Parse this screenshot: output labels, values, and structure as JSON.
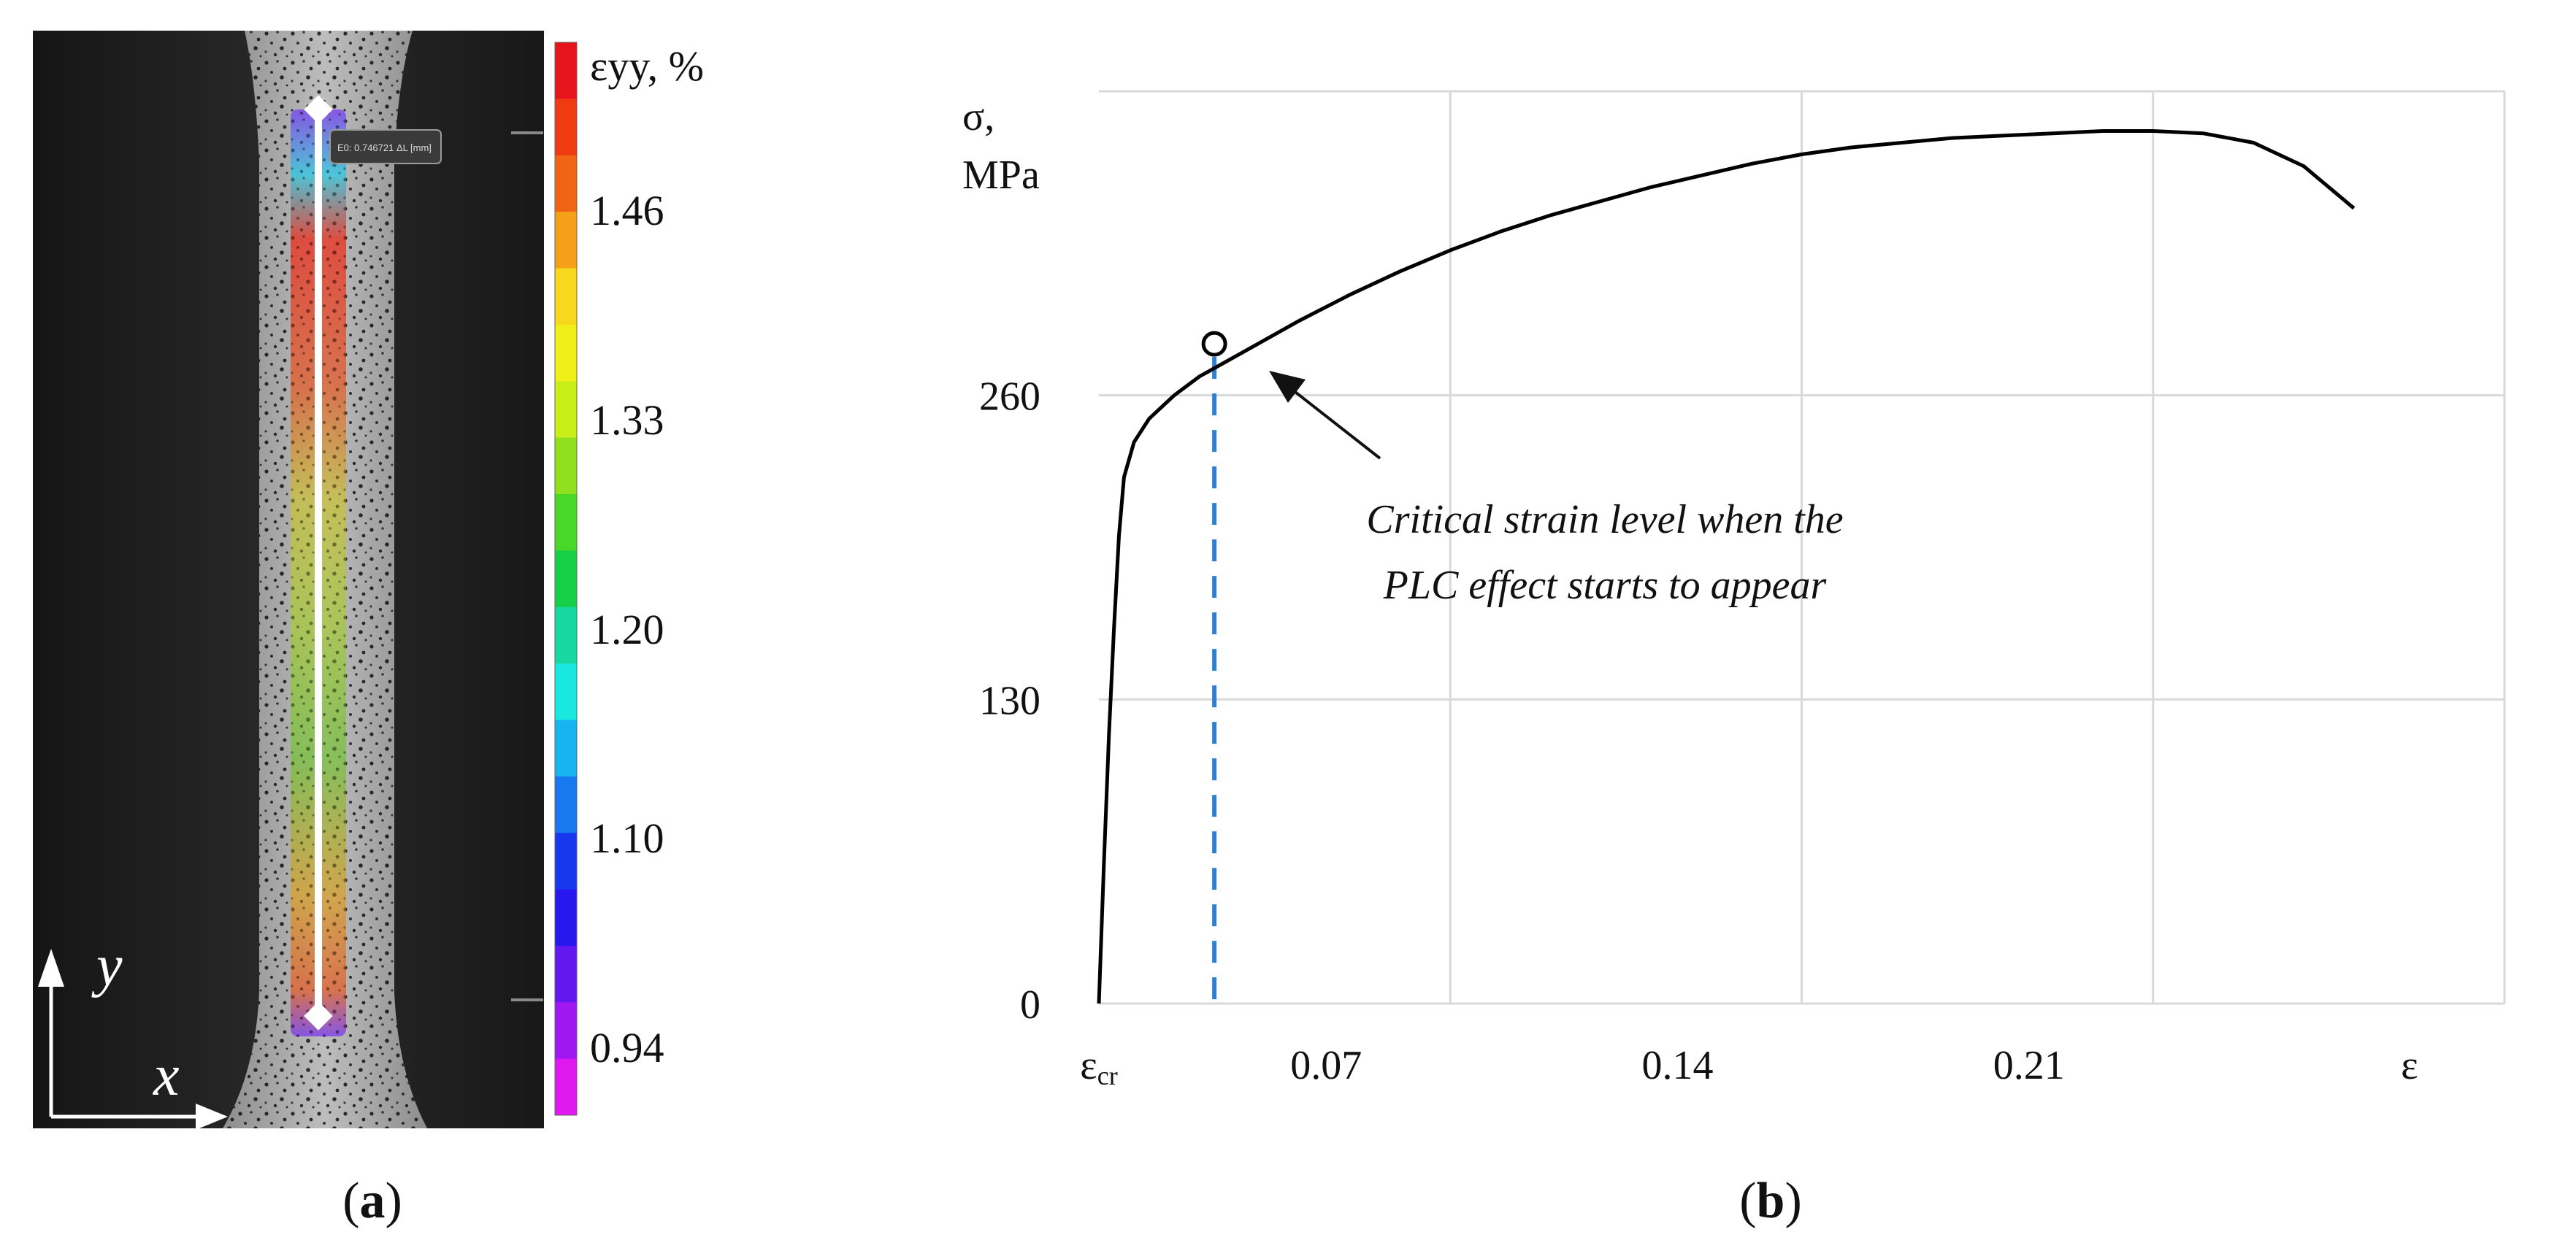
{
  "panel_a": {
    "caption_letter": "a",
    "overlay_tag": "E0: 0.746721 ΔL [mm]",
    "colorbar": {
      "title": "εyy, %",
      "ticks": [
        {
          "label": "1.46",
          "value": 1.46
        },
        {
          "label": "1.33",
          "value": 1.33
        },
        {
          "label": "1.20",
          "value": 1.2
        },
        {
          "label": "1.10",
          "value": 1.1
        },
        {
          "label": "0.94",
          "value": 0.94
        }
      ],
      "colors_top_to_bottom": [
        "#e8141c",
        "#f03a12",
        "#f06414",
        "#f4a018",
        "#f8d81c",
        "#f0f018",
        "#c8f018",
        "#90e020",
        "#48d828",
        "#18d048",
        "#18d8a0",
        "#18e8e0",
        "#18b4f0",
        "#1878f0",
        "#1838f0",
        "#2818f0",
        "#6418f0",
        "#a018f0",
        "#e018f0"
      ]
    },
    "axis_labels": {
      "y": "y",
      "x": "x"
    }
  },
  "panel_b": {
    "caption_letter": "b",
    "annotation_lines": [
      "Critical strain level when the",
      "PLC effect starts to appear"
    ]
  },
  "chart_data": {
    "type": "line",
    "title": "",
    "ylabel": "σ, MPa",
    "xlabel": "ε",
    "x_origin_label": "εcr",
    "ylim": [
      0,
      390
    ],
    "xlim": [
      0,
      0.28
    ],
    "grid": true,
    "x_ticks": [
      {
        "label": "0.07",
        "value": 0.07
      },
      {
        "label": "0.14",
        "value": 0.14
      },
      {
        "label": "0.21",
        "value": 0.21
      }
    ],
    "y_ticks": [
      {
        "label": "0",
        "value": 0
      },
      {
        "label": "130",
        "value": 130
      },
      {
        "label": "260",
        "value": 260
      }
    ],
    "series": [
      {
        "x": [
          0,
          0.001,
          0.002,
          0.003,
          0.004,
          0.005,
          0.007,
          0.01,
          0.015,
          0.02,
          0.03,
          0.04,
          0.05,
          0.06,
          0.07,
          0.08,
          0.09,
          0.1,
          0.11,
          0.12,
          0.13,
          0.14,
          0.15,
          0.16,
          0.17,
          0.18,
          0.19,
          0.2,
          0.21,
          0.22,
          0.23,
          0.24,
          0.25
        ],
        "y": [
          0,
          60,
          115,
          160,
          200,
          225,
          240,
          250,
          260,
          268,
          280,
          292,
          303,
          313,
          322,
          330,
          337,
          343,
          349,
          354,
          359,
          363,
          366,
          368,
          370,
          371,
          372,
          373,
          373,
          372,
          368,
          358,
          340
        ]
      }
    ],
    "marker": {
      "x": 0.023,
      "y": 282
    },
    "critical_strain_line_x": 0.023,
    "colors": {
      "curve": "#000000",
      "dashed": "#2f7fd0",
      "grid": "#d9d9d9"
    }
  }
}
